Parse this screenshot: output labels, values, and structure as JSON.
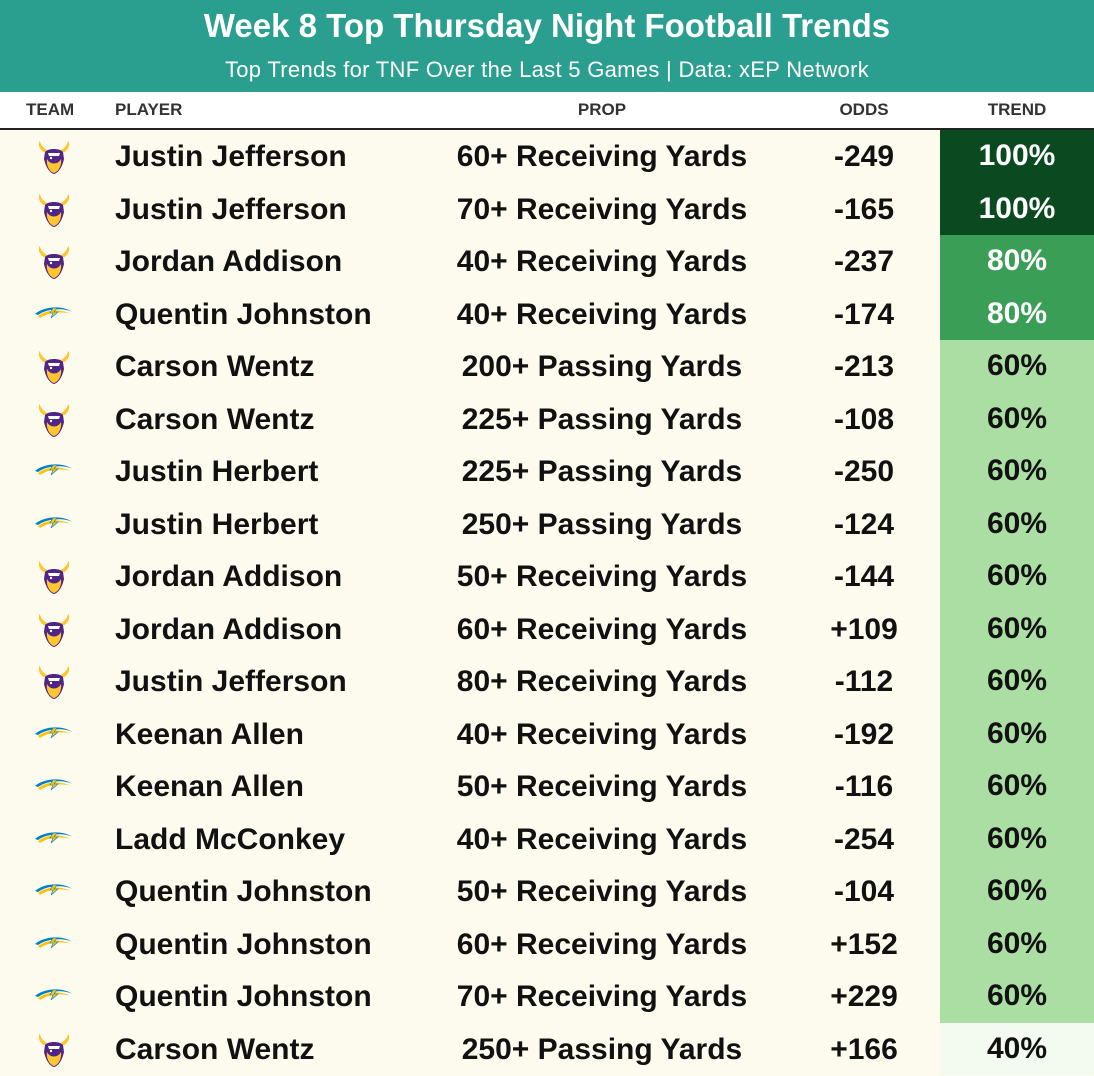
{
  "header": {
    "title": "Week 8 Top Thursday Night Football Trends",
    "subtitle": "Top Trends for TNF Over the Last 5 Games | Data: xEP Network"
  },
  "columns": {
    "team": "TEAM",
    "player": "PLAYER",
    "prop": "PROP",
    "odds": "ODDS",
    "trend": "TREND"
  },
  "colors": {
    "header_bg": "#2b9f8f",
    "trend_100": "#0b4a20",
    "trend_80": "#3a9e56",
    "trend_60": "#abdea3",
    "trend_40": "#f3faf0",
    "vikings_purple": "#4f2683",
    "vikings_gold": "#ffc62f",
    "chargers_blue": "#0080c6",
    "chargers_gold": "#ffc20e"
  },
  "rows": [
    {
      "team": "vikings-logo",
      "player": "Justin Jefferson",
      "prop": "60+ Receiving Yards",
      "odds": "-249",
      "trend": "100%"
    },
    {
      "team": "vikings-logo",
      "player": "Justin Jefferson",
      "prop": "70+ Receiving Yards",
      "odds": "-165",
      "trend": "100%"
    },
    {
      "team": "vikings-logo",
      "player": "Jordan Addison",
      "prop": "40+ Receiving Yards",
      "odds": "-237",
      "trend": "80%"
    },
    {
      "team": "chargers-logo",
      "player": "Quentin Johnston",
      "prop": "40+ Receiving Yards",
      "odds": "-174",
      "trend": "80%"
    },
    {
      "team": "vikings-logo",
      "player": "Carson Wentz",
      "prop": "200+ Passing Yards",
      "odds": "-213",
      "trend": "60%"
    },
    {
      "team": "vikings-logo",
      "player": "Carson Wentz",
      "prop": "225+ Passing Yards",
      "odds": "-108",
      "trend": "60%"
    },
    {
      "team": "chargers-logo",
      "player": "Justin Herbert",
      "prop": "225+ Passing Yards",
      "odds": "-250",
      "trend": "60%"
    },
    {
      "team": "chargers-logo",
      "player": "Justin Herbert",
      "prop": "250+ Passing Yards",
      "odds": "-124",
      "trend": "60%"
    },
    {
      "team": "vikings-logo",
      "player": "Jordan Addison",
      "prop": "50+ Receiving Yards",
      "odds": "-144",
      "trend": "60%"
    },
    {
      "team": "vikings-logo",
      "player": "Jordan Addison",
      "prop": "60+ Receiving Yards",
      "odds": "+109",
      "trend": "60%"
    },
    {
      "team": "vikings-logo",
      "player": "Justin Jefferson",
      "prop": "80+ Receiving Yards",
      "odds": "-112",
      "trend": "60%"
    },
    {
      "team": "chargers-logo",
      "player": "Keenan Allen",
      "prop": "40+ Receiving Yards",
      "odds": "-192",
      "trend": "60%"
    },
    {
      "team": "chargers-logo",
      "player": "Keenan Allen",
      "prop": "50+ Receiving Yards",
      "odds": "-116",
      "trend": "60%"
    },
    {
      "team": "chargers-logo",
      "player": "Ladd McConkey",
      "prop": "40+ Receiving Yards",
      "odds": "-254",
      "trend": "60%"
    },
    {
      "team": "chargers-logo",
      "player": "Quentin Johnston",
      "prop": "50+ Receiving Yards",
      "odds": "-104",
      "trend": "60%"
    },
    {
      "team": "chargers-logo",
      "player": "Quentin Johnston",
      "prop": "60+ Receiving Yards",
      "odds": "+152",
      "trend": "60%"
    },
    {
      "team": "chargers-logo",
      "player": "Quentin Johnston",
      "prop": "70+ Receiving Yards",
      "odds": "+229",
      "trend": "60%"
    },
    {
      "team": "vikings-logo",
      "player": "Carson Wentz",
      "prop": "250+ Passing Yards",
      "odds": "+166",
      "trend": "40%"
    }
  ]
}
